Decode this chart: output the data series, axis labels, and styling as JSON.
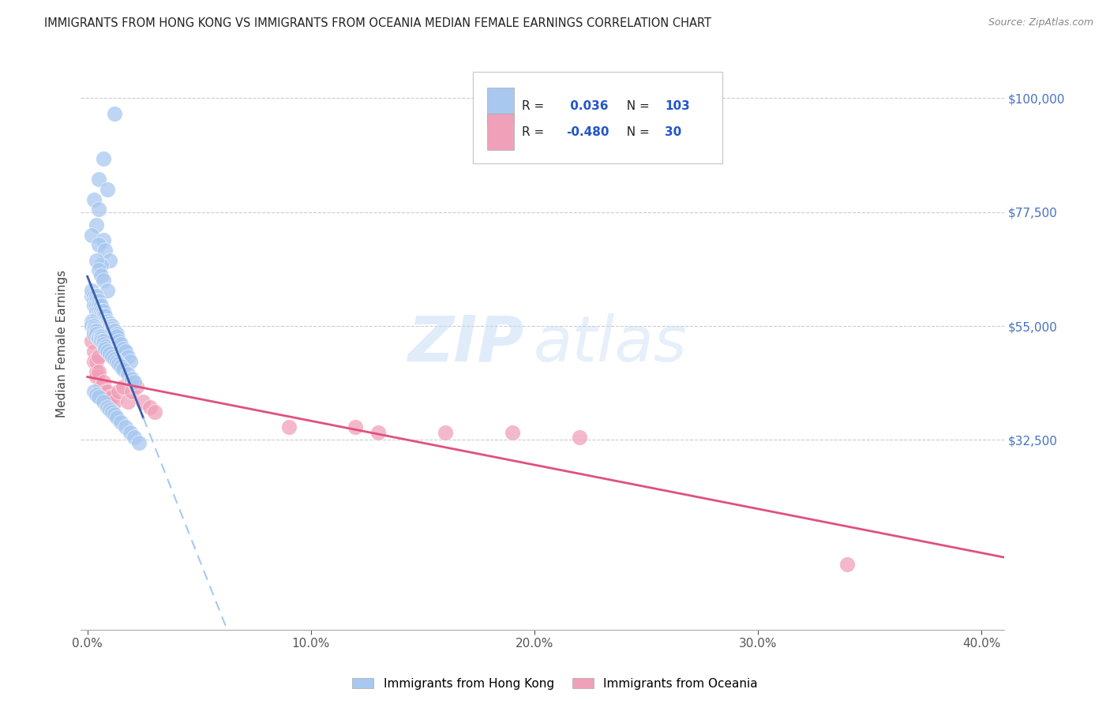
{
  "title": "IMMIGRANTS FROM HONG KONG VS IMMIGRANTS FROM OCEANIA MEDIAN FEMALE EARNINGS CORRELATION CHART",
  "source": "Source: ZipAtlas.com",
  "xlabel_ticks": [
    "0.0%",
    "10.0%",
    "20.0%",
    "30.0%",
    "40.0%"
  ],
  "xlabel_tick_vals": [
    0.0,
    0.1,
    0.2,
    0.3,
    0.4
  ],
  "ylabel": "Median Female Earnings",
  "ylabel_ticks": [
    "$100,000",
    "$77,500",
    "$55,000",
    "$32,500"
  ],
  "ylabel_tick_vals": [
    100000,
    77500,
    55000,
    32500
  ],
  "ylim": [
    -5000,
    108000
  ],
  "xlim": [
    -0.003,
    0.41
  ],
  "hk_R": 0.036,
  "hk_N": 103,
  "oc_R": -0.48,
  "oc_N": 30,
  "hk_color": "#a8c8f0",
  "hk_trendline_solid_color": "#3a5ea8",
  "hk_trendline_dash_color": "#a8c8f0",
  "oc_color": "#f0a0b8",
  "oc_trendline_color": "#e05080",
  "watermark": "ZIPatlas",
  "legend_label_hk": "Immigrants from Hong Kong",
  "legend_label_oc": "Immigrants from Oceania",
  "background_color": "#ffffff",
  "grid_color": "#cccccc",
  "title_color": "#222222",
  "axis_label_color": "#444444",
  "right_tick_color": "#4472c4",
  "hk_scatter_x": [
    0.012,
    0.007,
    0.005,
    0.009,
    0.003,
    0.005,
    0.004,
    0.002,
    0.007,
    0.005,
    0.008,
    0.01,
    0.006,
    0.004,
    0.005,
    0.006,
    0.007,
    0.009,
    0.002,
    0.002,
    0.003,
    0.003,
    0.003,
    0.004,
    0.004,
    0.004,
    0.004,
    0.005,
    0.005,
    0.005,
    0.005,
    0.006,
    0.006,
    0.006,
    0.006,
    0.007,
    0.007,
    0.007,
    0.008,
    0.008,
    0.008,
    0.009,
    0.009,
    0.009,
    0.01,
    0.01,
    0.01,
    0.011,
    0.011,
    0.011,
    0.012,
    0.012,
    0.013,
    0.013,
    0.014,
    0.015,
    0.016,
    0.017,
    0.018,
    0.019,
    0.002,
    0.002,
    0.002,
    0.003,
    0.003,
    0.003,
    0.003,
    0.004,
    0.004,
    0.005,
    0.005,
    0.006,
    0.006,
    0.006,
    0.007,
    0.007,
    0.008,
    0.008,
    0.009,
    0.01,
    0.011,
    0.012,
    0.013,
    0.014,
    0.015,
    0.016,
    0.018,
    0.02,
    0.021,
    0.003,
    0.004,
    0.005,
    0.007,
    0.009,
    0.01,
    0.011,
    0.012,
    0.013,
    0.015,
    0.017,
    0.019,
    0.021,
    0.023
  ],
  "hk_scatter_y": [
    97000,
    88000,
    84000,
    82000,
    80000,
    78000,
    75000,
    73000,
    72000,
    71000,
    70000,
    68000,
    67000,
    68000,
    66000,
    65000,
    64000,
    62000,
    61000,
    62000,
    61000,
    60000,
    59000,
    61000,
    60000,
    59000,
    58000,
    60000,
    59000,
    58000,
    57000,
    59000,
    58000,
    57000,
    56000,
    58000,
    57000,
    56000,
    57000,
    56000,
    55000,
    56000,
    55500,
    55000,
    55500,
    55000,
    54500,
    55000,
    54500,
    54000,
    54000,
    53000,
    53500,
    53000,
    52000,
    51500,
    50500,
    50000,
    49000,
    48000,
    56000,
    55500,
    55000,
    55000,
    54500,
    54000,
    53500,
    54000,
    53500,
    53000,
    52500,
    53000,
    52500,
    52000,
    52000,
    51500,
    51000,
    50500,
    50000,
    49500,
    49000,
    48500,
    48000,
    47500,
    47000,
    46500,
    45500,
    44500,
    44000,
    42000,
    41500,
    41000,
    40000,
    39000,
    38500,
    38000,
    37500,
    37000,
    36000,
    35000,
    34000,
    33000,
    32000
  ],
  "oc_scatter_x": [
    0.002,
    0.003,
    0.003,
    0.004,
    0.004,
    0.004,
    0.005,
    0.005,
    0.006,
    0.007,
    0.008,
    0.009,
    0.01,
    0.011,
    0.012,
    0.014,
    0.016,
    0.018,
    0.02,
    0.022,
    0.025,
    0.028,
    0.03,
    0.09,
    0.12,
    0.16,
    0.19,
    0.22,
    0.34,
    0.13
  ],
  "oc_scatter_y": [
    52000,
    50000,
    48000,
    46000,
    48000,
    45000,
    49000,
    46000,
    43000,
    44000,
    42000,
    42000,
    41000,
    41000,
    40000,
    42000,
    43000,
    40000,
    42000,
    43000,
    40000,
    39000,
    38000,
    35000,
    35000,
    34000,
    34000,
    33000,
    8000,
    34000
  ]
}
